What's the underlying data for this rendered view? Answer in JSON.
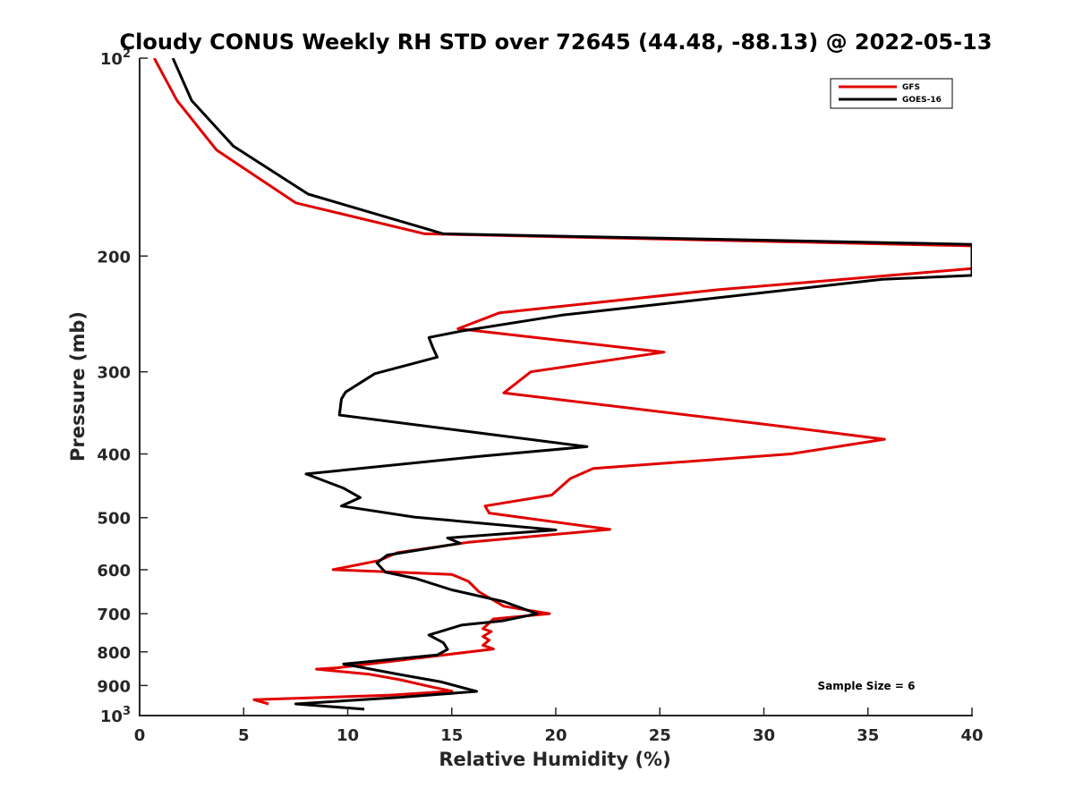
{
  "chart_data": {
    "type": "line",
    "title": "Cloudy CONUS Weekly RH STD over 72645 (44.48, -88.13) @ 2022-05-13",
    "xlabel": "Relative Humidity (%)",
    "ylabel": "Pressure (mb)",
    "xlim": [
      0,
      40
    ],
    "ylim": [
      100,
      1000
    ],
    "yscale": "log",
    "y_reversed": true,
    "grid": false,
    "legend_position": "top-right",
    "x_ticks": [
      "0",
      "5",
      "10",
      "15",
      "20",
      "25",
      "30",
      "35",
      "40"
    ],
    "y_ticks": [
      {
        "value": 100,
        "base": "10",
        "exp": "2",
        "label": ""
      },
      {
        "value": 200,
        "label": "200"
      },
      {
        "value": 300,
        "label": "300"
      },
      {
        "value": 400,
        "label": "400"
      },
      {
        "value": 500,
        "label": "500"
      },
      {
        "value": 600,
        "label": "600"
      },
      {
        "value": 700,
        "label": "700"
      },
      {
        "value": 800,
        "label": "800"
      },
      {
        "value": 900,
        "label": "900"
      },
      {
        "value": 1000,
        "base": "10",
        "exp": "3",
        "label": ""
      }
    ],
    "annotation": "Sample Size = 6",
    "series": [
      {
        "name": "GFS",
        "color": "#e00000",
        "x": [
          0.7,
          1.8,
          3.7,
          7.5,
          13.7,
          40.0,
          40.0,
          27.8,
          17.3,
          15.3,
          25.2,
          18.8,
          17.5,
          30.8,
          35.8,
          31.3,
          21.8,
          20.7,
          19.8,
          16.6,
          16.8,
          22.6,
          15.8,
          12.4,
          11.5,
          9.3,
          12.8,
          15.0,
          15.8,
          16.3,
          17.5,
          19.7,
          17.0,
          16.5,
          16.9,
          16.5,
          16.8,
          16.5,
          17.0,
          9.5,
          8.5,
          11.0,
          12.5,
          14.0,
          15.0,
          12.0,
          5.5,
          6.2
        ],
        "y": [
          100,
          116,
          138,
          166,
          185,
          193,
          209,
          225,
          244,
          258,
          280,
          300,
          323,
          363,
          380,
          400,
          421,
          436,
          462,
          480,
          492,
          521,
          545,
          565,
          581,
          600,
          606,
          610,
          625,
          648,
          682,
          700,
          713,
          738,
          745,
          758,
          768,
          782,
          792,
          846,
          850,
          865,
          882,
          904,
          918,
          931,
          946,
          960
        ],
        "label": ""
      },
      {
        "name": "GOES-16",
        "color": "#000000",
        "x": [
          1.6,
          2.5,
          4.5,
          8.1,
          14.6,
          40.0,
          40.0,
          35.7,
          20.3,
          15.5,
          13.9,
          14.1,
          14.3,
          11.3,
          9.9,
          9.7,
          9.6,
          16.4,
          21.5,
          16.1,
          8.0,
          9.8,
          10.6,
          9.7,
          13.2,
          20.0,
          14.8,
          15.4,
          11.9,
          11.4,
          11.8,
          13.3,
          15.0,
          17.5,
          19.1,
          17.4,
          15.5,
          13.9,
          14.6,
          14.8,
          14.3,
          10.5,
          9.8,
          12.5,
          14.5,
          16.2,
          12.5,
          7.5,
          10.8
        ],
        "y": [
          100,
          116,
          136,
          161,
          185,
          192,
          214,
          217,
          246,
          260,
          266,
          276,
          285,
          302,
          322,
          330,
          349,
          372,
          390,
          404,
          429,
          451,
          466,
          480,
          499,
          522,
          537,
          547,
          570,
          586,
          605,
          619,
          644,
          671,
          700,
          718,
          728,
          754,
          775,
          793,
          809,
          831,
          835,
          866,
          889,
          919,
          938,
          960,
          978
        ],
        "label": ""
      }
    ]
  }
}
